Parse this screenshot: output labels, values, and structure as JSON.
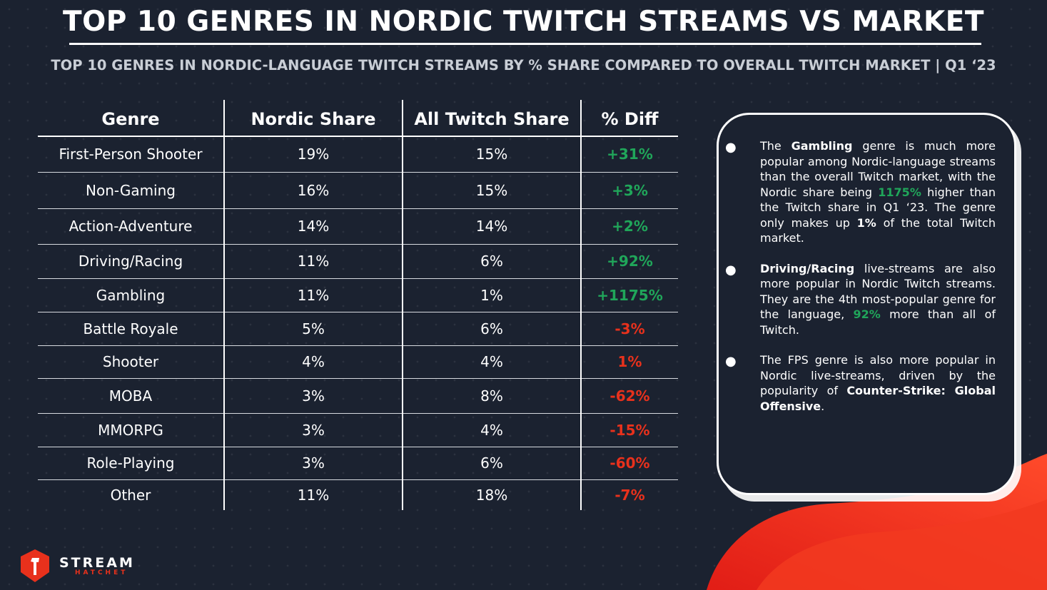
{
  "title": "TOP 10 GENRES IN NORDIC TWITCH STREAMS VS MARKET",
  "subtitle": "TOP 10 GENRES IN NORDIC-LANGUAGE TWITCH STREAMS BY % SHARE COMPARED TO OVERALL TWITCH MARKET | Q1 ‘23",
  "chart_data": {
    "type": "table",
    "title": "TOP 10 GENRES IN NORDIC TWITCH STREAMS VS MARKET",
    "columns": [
      "Genre",
      "Nordic Share",
      "All Twitch Share",
      "% Diff"
    ],
    "rows": [
      {
        "genre": "First-Person Shooter",
        "nordic": "19%",
        "all": "15%",
        "diff": "+31%",
        "sentiment": "positive"
      },
      {
        "genre": "Non-Gaming",
        "nordic": "16%",
        "all": "15%",
        "diff": "+3%",
        "sentiment": "positive"
      },
      {
        "genre": "Action-Adventure",
        "nordic": "14%",
        "all": "14%",
        "diff": "+2%",
        "sentiment": "positive"
      },
      {
        "genre": "Driving/Racing",
        "nordic": "11%",
        "all": "6%",
        "diff": "+92%",
        "sentiment": "positive"
      },
      {
        "genre": "Gambling",
        "nordic": "11%",
        "all": "1%",
        "diff": "+1175%",
        "sentiment": "positive"
      },
      {
        "genre": "Battle Royale",
        "nordic": "5%",
        "all": "6%",
        "diff": "-3%",
        "sentiment": "negative"
      },
      {
        "genre": "Shooter",
        "nordic": "4%",
        "all": "4%",
        "diff": "1%",
        "sentiment": "negative"
      },
      {
        "genre": "MOBA",
        "nordic": "3%",
        "all": "8%",
        "diff": "-62%",
        "sentiment": "negative"
      },
      {
        "genre": "MMORPG",
        "nordic": "3%",
        "all": "4%",
        "diff": "-15%",
        "sentiment": "negative"
      },
      {
        "genre": "Role-Playing",
        "nordic": "3%",
        "all": "6%",
        "diff": "-60%",
        "sentiment": "negative"
      },
      {
        "genre": "Other",
        "nordic": "11%",
        "all": "18%",
        "diff": "-7%",
        "sentiment": "negative"
      }
    ]
  },
  "insights": [
    [
      {
        "t": "The "
      },
      {
        "t": "Gambling",
        "b": true
      },
      {
        "t": " genre is much more popular among Nordic-language streams than the overall Twitch market, with the Nordic share being "
      },
      {
        "t": "1175%",
        "b": true,
        "green": true
      },
      {
        "t": " higher than the Twitch share in Q1 ‘23. The genre only makes up "
      },
      {
        "t": "1%",
        "b": true
      },
      {
        "t": " of the total Twitch market."
      }
    ],
    [
      {
        "t": "Driving/Racing",
        "b": true
      },
      {
        "t": " live-streams are also more popular in Nordic Twitch streams. They are the 4th most-popular genre for the language, "
      },
      {
        "t": "92%",
        "b": true,
        "green": true
      },
      {
        "t": " more than all of Twitch."
      }
    ],
    [
      {
        "t": "The FPS genre is also more popular in Nordic live-streams, driven by the popularity of "
      },
      {
        "t": "Counter-Strike: Global Offensive",
        "b": true
      },
      {
        "t": "."
      }
    ]
  ],
  "bullet_glyph": "●",
  "logo": {
    "word1": "STREAM",
    "word2": "HATCHET"
  },
  "colors": {
    "background": "#1b2230",
    "positive": "#20a65a",
    "negative": "#e8311c",
    "accent": "#f2391f"
  }
}
